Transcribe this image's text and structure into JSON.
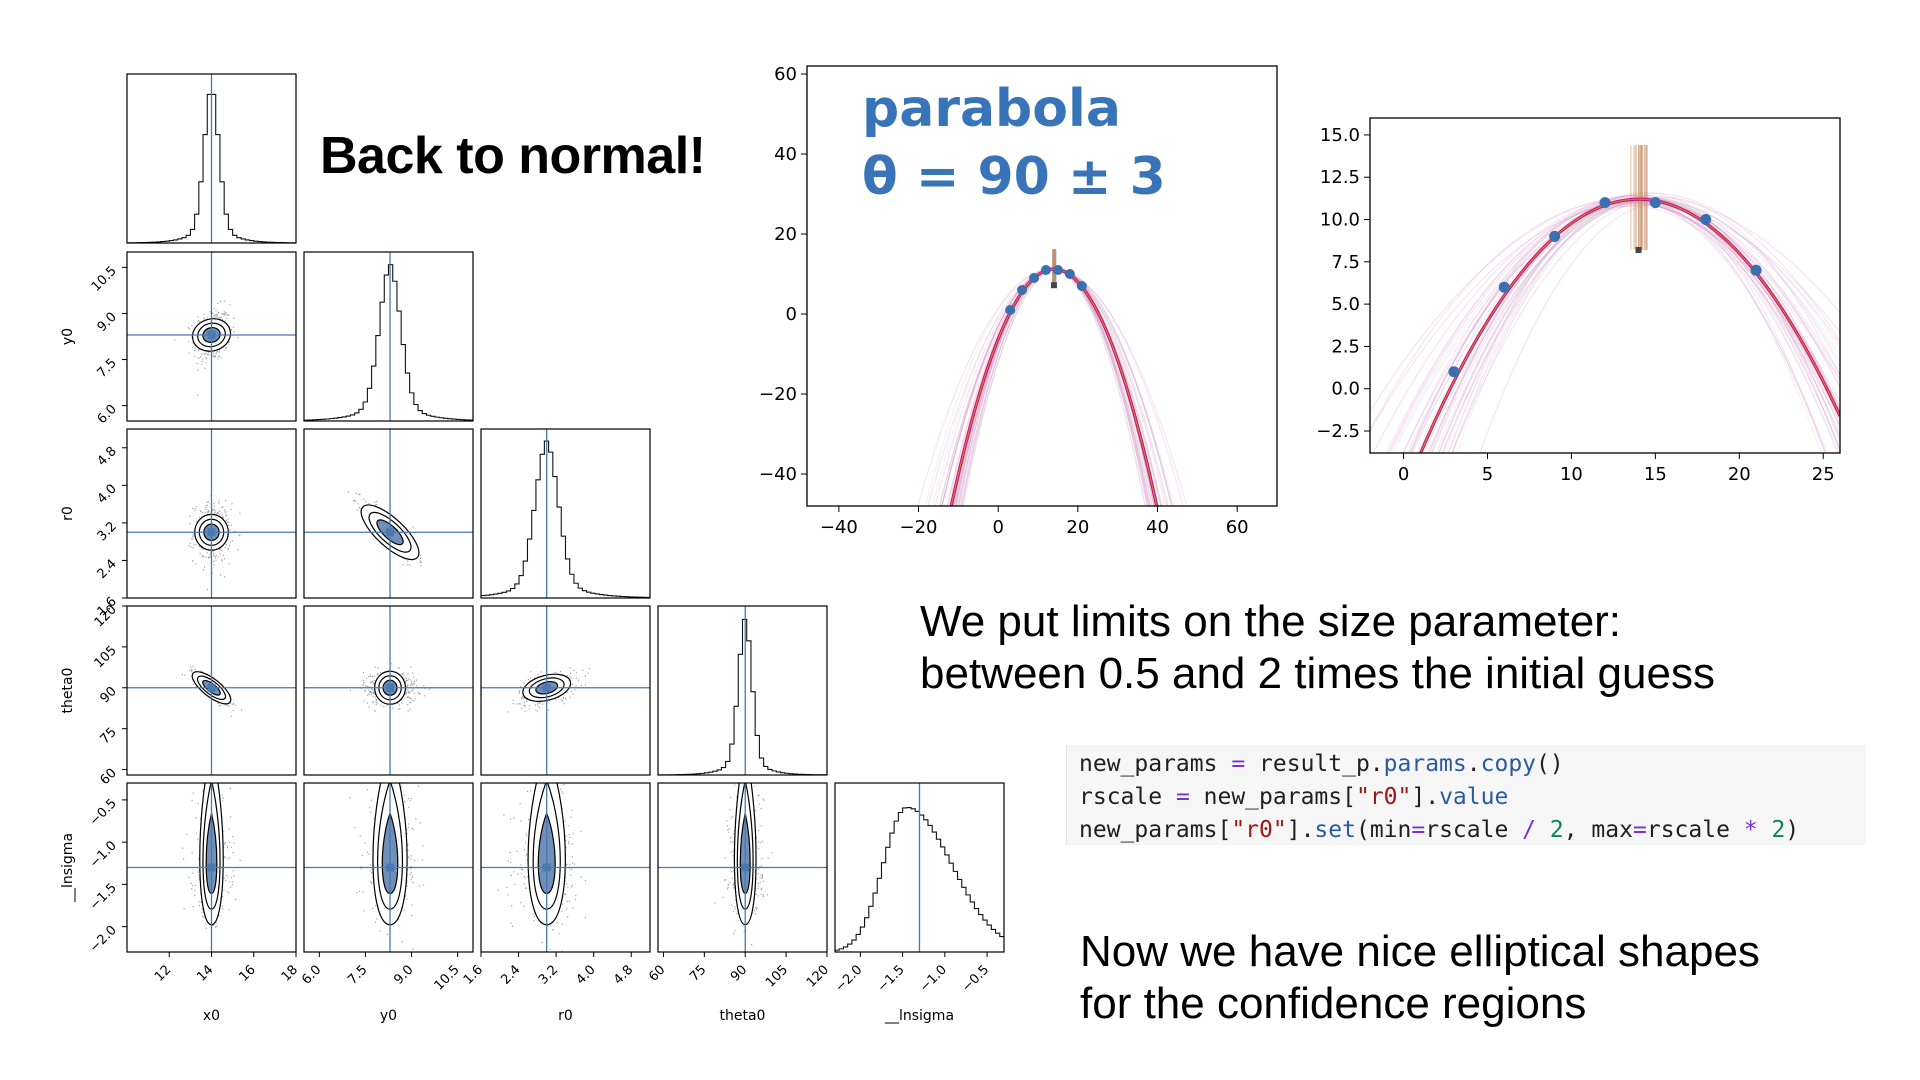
{
  "slide": {
    "title": "Back to normal!",
    "paragraph1": [
      "We put limits on the size parameter:",
      "between 0.5 and 2 times the initial guess"
    ],
    "paragraph2": [
      "Now we have nice elliptical shapes",
      "for the confidence regions"
    ],
    "code_lines": [
      "new_params = result_p.params.copy()",
      "rscale = new_params[\"r0\"].value",
      "new_params[\"r0\"].set(min=rscale / 2, max=rscale * 2)"
    ]
  },
  "colors": {
    "truth_line": "#4a78b0",
    "points": "#3a6fb0",
    "curve_orange": "#e07a30",
    "curve_magenta": "#c0157a",
    "annotation": "#3a74b8",
    "contour_fill": "#6f8fb8"
  },
  "chart_data": [
    {
      "type": "corner",
      "parameters": [
        "x0",
        "y0",
        "r0",
        "theta0",
        "__lnsigma"
      ],
      "axis_labels": [
        "x0",
        "y0",
        "r0",
        "theta0",
        "__lnsigma"
      ],
      "ranges": [
        [
          10,
          18
        ],
        [
          5.5,
          11
        ],
        [
          1.6,
          5.2
        ],
        [
          58,
          120
        ],
        [
          -2.3,
          -0.3
        ]
      ],
      "ticks": [
        [
          12,
          14,
          16,
          18
        ],
        [
          6.0,
          7.5,
          9.0,
          10.5
        ],
        [
          1.6,
          2.4,
          3.2,
          4.0,
          4.8
        ],
        [
          60,
          75,
          90,
          105,
          120
        ],
        [
          -2.0,
          -1.5,
          -1.0,
          -0.5
        ]
      ],
      "tick_labels": [
        [
          "12",
          "14",
          "16",
          "18"
        ],
        [
          "6.0",
          "7.5",
          "9.0",
          "10.5"
        ],
        [
          "1.6",
          "2.4",
          "3.2",
          "4.0",
          "4.8"
        ],
        [
          "60",
          "75",
          "90",
          "105",
          "120"
        ],
        [
          "−2.0",
          "−1.5",
          "−1.0",
          "−0.5"
        ]
      ],
      "truth": [
        14.0,
        8.3,
        3.0,
        90,
        -1.3
      ],
      "sigma": [
        0.35,
        0.35,
        0.25,
        2.5,
        0.28
      ],
      "correlations": {
        "x0-theta0": -0.85,
        "y0-r0": -0.85,
        "r0-theta0": 0.45,
        "x0-y0": 0.2
      },
      "lnsigma_distribution": "right-skewed"
    },
    {
      "type": "line",
      "annotation": [
        "parabola",
        "θ = 90 ± 3"
      ],
      "xlim": [
        -48,
        70
      ],
      "ylim": [
        -48,
        62
      ],
      "xticks": [
        -40,
        -20,
        0,
        20,
        40,
        60
      ],
      "xtick_labels": [
        "−40",
        "−20",
        "0",
        "20",
        "40",
        "60"
      ],
      "yticks": [
        -40,
        -20,
        0,
        20,
        40,
        60
      ],
      "ytick_labels": [
        "−40",
        "−20",
        "0",
        "20",
        "40",
        "60"
      ],
      "points": [
        [
          3,
          1
        ],
        [
          6,
          6
        ],
        [
          9,
          9
        ],
        [
          12,
          11
        ],
        [
          15,
          11
        ],
        [
          18,
          10
        ],
        [
          21,
          7
        ]
      ],
      "vertex": [
        14,
        11.2
      ],
      "curvature": -0.089
    },
    {
      "type": "line",
      "xlim": [
        -2,
        26
      ],
      "ylim": [
        -3.8,
        16
      ],
      "xticks": [
        0,
        5,
        10,
        15,
        20,
        25
      ],
      "xtick_labels": [
        "0",
        "5",
        "10",
        "15",
        "20",
        "25"
      ],
      "yticks": [
        -2.5,
        0.0,
        2.5,
        5.0,
        7.5,
        10.0,
        12.5,
        15.0
      ],
      "ytick_labels": [
        "−2.5",
        "0.0",
        "2.5",
        "5.0",
        "7.5",
        "10.0",
        "12.5",
        "15.0"
      ],
      "points": [
        [
          3,
          1
        ],
        [
          6,
          6
        ],
        [
          9,
          9
        ],
        [
          12,
          11
        ],
        [
          15,
          11
        ],
        [
          18,
          10
        ],
        [
          21,
          7
        ]
      ],
      "vertex": [
        14,
        11.2
      ],
      "curvature": -0.089
    }
  ]
}
